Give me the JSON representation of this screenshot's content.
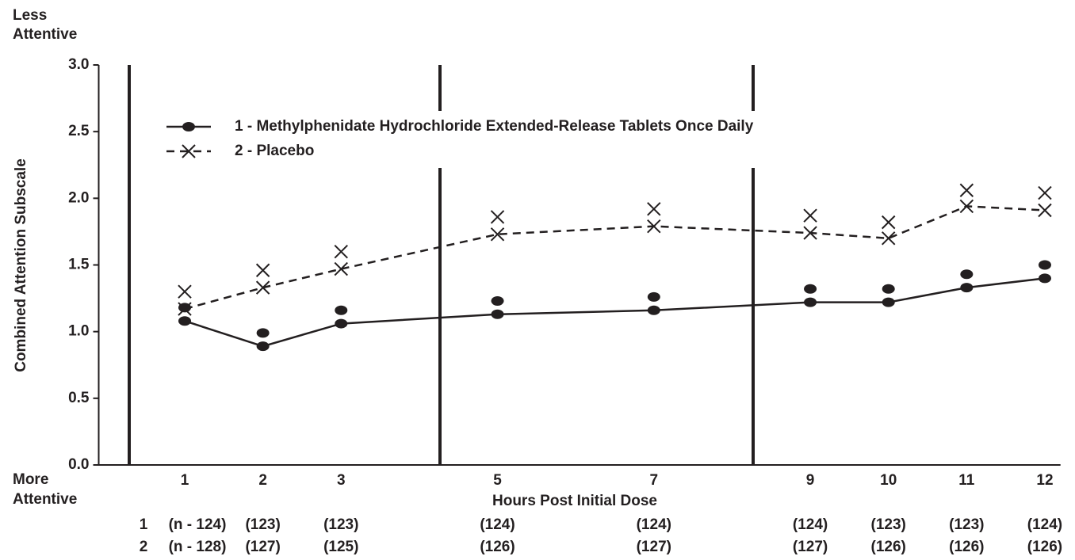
{
  "chart_data": {
    "type": "line",
    "top_note": [
      "Less",
      "Attentive"
    ],
    "bottom_note": [
      "More",
      "Attentive"
    ],
    "y_label": "Combined Attention Subscale",
    "x_label": "Hours Post Initial Dose",
    "x": [
      1,
      2,
      3,
      5,
      7,
      9,
      10,
      11,
      12
    ],
    "xlim": [
      -0.1,
      12.2
    ],
    "xticks": [
      1,
      2,
      3,
      5,
      7,
      9,
      10,
      11,
      12
    ],
    "ylim": [
      0,
      3
    ],
    "yticks": [
      {
        "value": 0,
        "label": "0.0"
      },
      {
        "value": 0.5,
        "label": "0.5"
      },
      {
        "value": 1,
        "label": "1.0"
      },
      {
        "value": 1.5,
        "label": "1.5"
      },
      {
        "value": 2,
        "label": "2.0"
      },
      {
        "value": 2.5,
        "label": "2.5"
      },
      {
        "value": 3,
        "label": "3.0"
      }
    ],
    "series": [
      {
        "name": "1 - Methylphenidate Hydrochloride Extended-Release Tablets Once Daily",
        "color": "#231f20",
        "marker": "dot",
        "dash": false,
        "line": true,
        "values": [
          1.08,
          0.89,
          1.06,
          1.13,
          1.16,
          1.22,
          1.22,
          1.33,
          1.4
        ]
      },
      {
        "name": "2 - Placebo",
        "color": "#231f20",
        "marker": "x",
        "dash": true,
        "line": true,
        "values": [
          1.17,
          1.33,
          1.47,
          1.73,
          1.79,
          1.74,
          1.7,
          1.94,
          1.91
        ]
      },
      {
        "color": "#231f20",
        "marker": "dot",
        "line": false,
        "values": [
          1.18,
          0.99,
          1.16,
          1.23,
          1.26,
          1.32,
          1.32,
          1.43,
          1.5
        ]
      },
      {
        "color": "#231f20",
        "marker": "x",
        "line": false,
        "values": [
          1.3,
          1.46,
          1.6,
          1.86,
          1.92,
          1.87,
          1.82,
          2.06,
          2.04
        ]
      }
    ],
    "n_rows": [
      {
        "label": "1",
        "values": [
          "(n - 124)",
          "(123)",
          "(123)",
          "(124)",
          "(124)",
          "(124)",
          "(123)",
          "(123)",
          "(124)"
        ]
      },
      {
        "label": "2",
        "values": [
          "(n - 128)",
          "(127)",
          "(125)",
          "(126)",
          "(127)",
          "(127)",
          "(126)",
          "(126)",
          "(126)"
        ]
      }
    ]
  }
}
